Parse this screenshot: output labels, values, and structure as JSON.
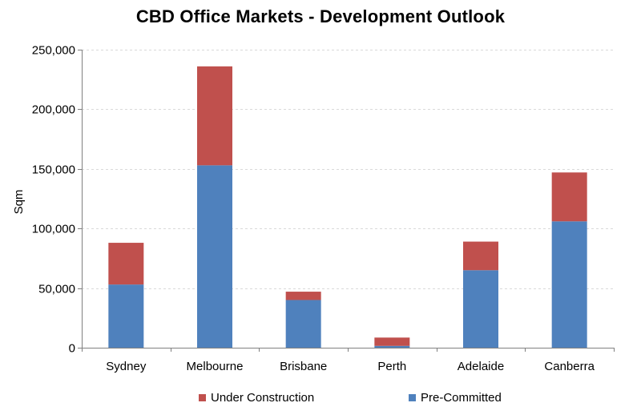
{
  "chart_data": {
    "type": "bar",
    "stacked": true,
    "title": "CBD Office Markets - Development Outlook",
    "xlabel": "",
    "ylabel": "Sqm",
    "ylim": [
      0,
      250000
    ],
    "yticks": [
      "0",
      "50,000",
      "100,000",
      "150,000",
      "200,000",
      "250,000"
    ],
    "categories": [
      "Sydney",
      "Melbourne",
      "Brisbane",
      "Perth",
      "Adelaide",
      "Canberra"
    ],
    "series": [
      {
        "name": "Pre-Committed",
        "color": "#4F81BD",
        "values": [
          53000,
          153000,
          40000,
          1500,
          65000,
          106000
        ]
      },
      {
        "name": "Under Construction",
        "color": "#C0504D",
        "values": [
          35000,
          83000,
          7000,
          7000,
          24000,
          41000
        ]
      }
    ],
    "legend": {
      "position": "bottom",
      "order": [
        "Under Construction",
        "Pre-Committed"
      ]
    },
    "grid": true
  }
}
